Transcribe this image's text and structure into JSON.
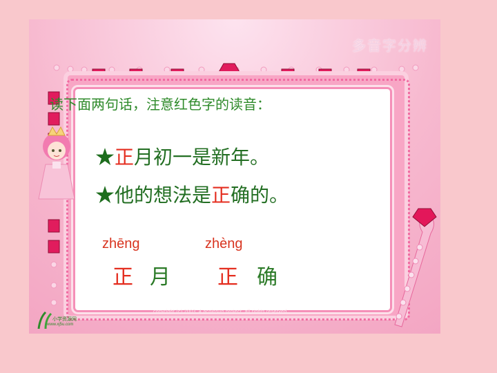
{
  "slide": {
    "header_title": "多音字分辨",
    "instruction": "读下面两句话，注意红色字的读音：",
    "sentence_1": {
      "star": "★",
      "highlight": "正",
      "rest": "月初一是新年。"
    },
    "sentence_2": {
      "star": "★",
      "before": "他的想法是",
      "highlight": "正",
      "rest": "确的。"
    },
    "pinyin": [
      "zhēng",
      "zhèng"
    ],
    "words": [
      {
        "char_1": "正",
        "char_2": "月"
      },
      {
        "char_1": "正",
        "char_2": "确"
      }
    ],
    "copyright": "copyright (c) 2003, 4 acojosun project. all rights reserved.",
    "logo_text": "小学资源网",
    "logo_url": "www.xj5u.com"
  },
  "colors": {
    "page_background": "#f9c8cc",
    "highlight_red": "#e42d1f",
    "text_green": "#226e22",
    "frame_pink": "#f8a6c5"
  },
  "icons": [
    "star-icon",
    "gem-icon",
    "princess-illustration",
    "scepter-illustration",
    "logo-icon"
  ]
}
